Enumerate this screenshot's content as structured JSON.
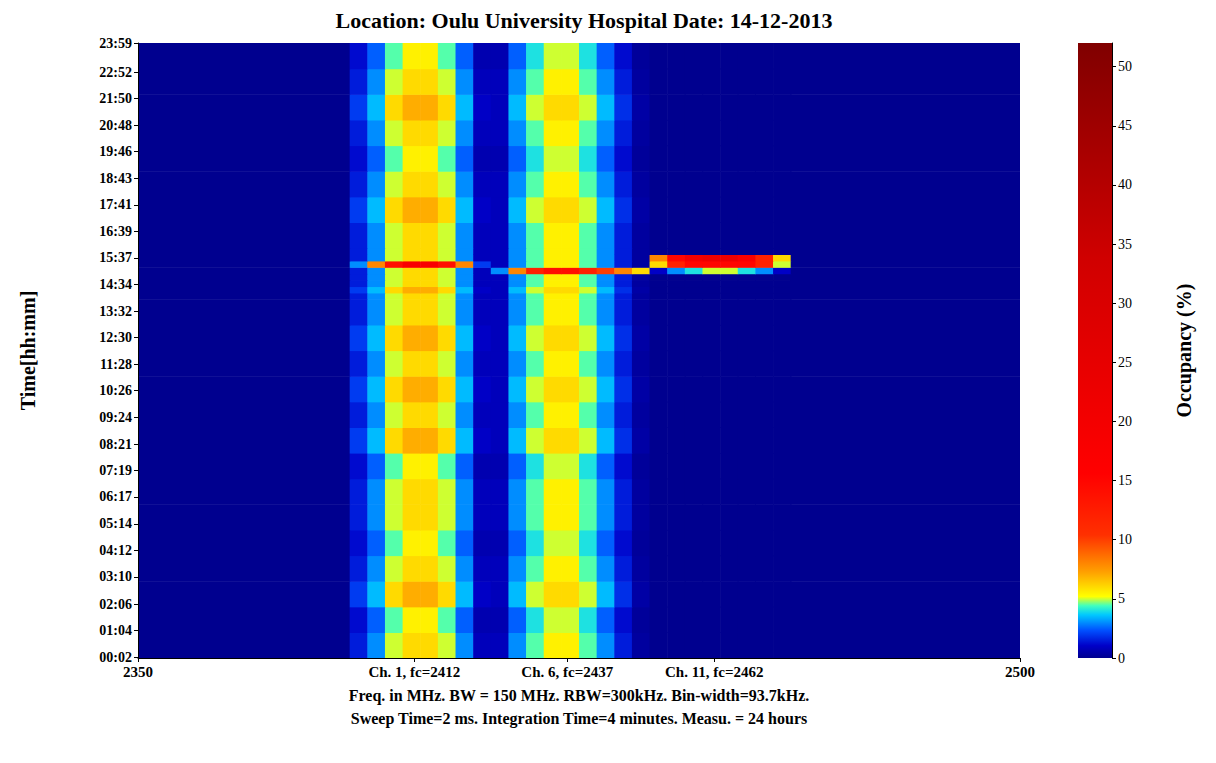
{
  "chart_data": {
    "type": "heatmap",
    "title": "Location: Oulu University Hospital Date: 14-12-2013",
    "xlabel": "Freq. in MHz. BW = 150 MHz. RBW=300kHz. Bin-width=93.7kHz.\nSweep Time=2 ms. Integration Time=4 minutes. Measu. = 24 hours",
    "ylabel": "Time[hh:mm]",
    "xlim": [
      2350,
      2500
    ],
    "xticks": [
      2350,
      {
        "value": 2397,
        "label": "Ch. 1, fc=2412"
      },
      {
        "value": 2423,
        "label": "Ch. 6, fc=2437"
      },
      {
        "value": 2448,
        "label": "Ch. 11, fc=2462"
      },
      2500
    ],
    "ylim": [
      0,
      1440
    ],
    "yticks": [
      {
        "value": 2,
        "label": "00:02"
      },
      {
        "value": 64,
        "label": "01:04"
      },
      {
        "value": 126,
        "label": "02:06"
      },
      {
        "value": 190,
        "label": "03:10"
      },
      {
        "value": 252,
        "label": "04:12"
      },
      {
        "value": 314,
        "label": "05:14"
      },
      {
        "value": 377,
        "label": "06:17"
      },
      {
        "value": 439,
        "label": "07:19"
      },
      {
        "value": 501,
        "label": "08:21"
      },
      {
        "value": 564,
        "label": "09:24"
      },
      {
        "value": 626,
        "label": "10:26"
      },
      {
        "value": 688,
        "label": "11:28"
      },
      {
        "value": 750,
        "label": "12:30"
      },
      {
        "value": 812,
        "label": "13:32"
      },
      {
        "value": 874,
        "label": "14:34"
      },
      {
        "value": 937,
        "label": "15:37"
      },
      {
        "value": 999,
        "label": "16:39"
      },
      {
        "value": 1061,
        "label": "17:41"
      },
      {
        "value": 1123,
        "label": "18:43"
      },
      {
        "value": 1186,
        "label": "19:46"
      },
      {
        "value": 1248,
        "label": "20:48"
      },
      {
        "value": 1310,
        "label": "21:50"
      },
      {
        "value": 1372,
        "label": "22:52"
      },
      {
        "value": 1439,
        "label": "23:59"
      }
    ],
    "grid": false,
    "x_bins": [
      2350,
      2386,
      2389,
      2392,
      2395,
      2398,
      2401,
      2404,
      2407,
      2410,
      2413,
      2416,
      2419,
      2422,
      2425,
      2428,
      2431,
      2434,
      2437,
      2440,
      2443,
      2446,
      2449,
      2452,
      2455,
      2458,
      2461,
      2500
    ],
    "y_bins": [
      0,
      60,
      120,
      180,
      240,
      300,
      360,
      420,
      480,
      540,
      600,
      660,
      720,
      780,
      840,
      855,
      870,
      885,
      900,
      915,
      930,
      945,
      960,
      1020,
      1080,
      1140,
      1200,
      1260,
      1320,
      1380,
      1440
    ],
    "z": [
      [
        0,
        1.5,
        3,
        5,
        6,
        6,
        5,
        3,
        0.8,
        0.8,
        3,
        4.5,
        5.5,
        5.5,
        4.5,
        3,
        1.5,
        0.3,
        0,
        0,
        0,
        0,
        0,
        0,
        0,
        0,
        0
      ],
      [
        0,
        1.2,
        2.5,
        4.5,
        5.5,
        5.5,
        4.5,
        2.5,
        0.6,
        0.6,
        2.5,
        4,
        5,
        5,
        4,
        2.5,
        1.2,
        0.2,
        0,
        0,
        0,
        0,
        0,
        0,
        0,
        0,
        0
      ],
      [
        0,
        2,
        3.5,
        6,
        7,
        7,
        6,
        3.5,
        1,
        0.8,
        3.5,
        5,
        6,
        6,
        5,
        3.5,
        1.8,
        0.4,
        0,
        0,
        0,
        0,
        0,
        0,
        0,
        0,
        0
      ],
      [
        0,
        1.5,
        3,
        5,
        6,
        6,
        5,
        3,
        0.8,
        0.8,
        3,
        4.5,
        5.5,
        5.5,
        4.5,
        3,
        1.5,
        0.3,
        0,
        0,
        0,
        0,
        0,
        0,
        0,
        0,
        0
      ],
      [
        0,
        1.2,
        2.5,
        4.5,
        5.5,
        5.5,
        4.5,
        2.5,
        0.6,
        0.6,
        2.5,
        4,
        5,
        5,
        4,
        2.5,
        1.2,
        0.2,
        0,
        0,
        0,
        0,
        0,
        0,
        0,
        0,
        0
      ],
      [
        0,
        1.5,
        3,
        5,
        6,
        6,
        5,
        3,
        0.8,
        0.8,
        3,
        4.5,
        5.5,
        5.5,
        4.5,
        3,
        1.5,
        0.3,
        0,
        0,
        0,
        0,
        0,
        0,
        0,
        0,
        0
      ],
      [
        0,
        1.5,
        3,
        5,
        6,
        6,
        5,
        3,
        0.8,
        0.8,
        3,
        4.5,
        5.5,
        5.5,
        4.5,
        3,
        1.5,
        0.3,
        0,
        0,
        0,
        0,
        0,
        0,
        0,
        0,
        0
      ],
      [
        0,
        1.2,
        2.5,
        4.5,
        5.5,
        5.5,
        4.5,
        2.5,
        0.6,
        0.6,
        2.5,
        4,
        5,
        5,
        4,
        2.5,
        1.2,
        0.2,
        0,
        0,
        0,
        0,
        0,
        0,
        0,
        0,
        0
      ],
      [
        0,
        2,
        3.5,
        6,
        7,
        7,
        6,
        3.5,
        1,
        0.8,
        3.5,
        5,
        6,
        6,
        5,
        3.5,
        1.8,
        0.4,
        0,
        0,
        0,
        0,
        0,
        0,
        0,
        0,
        0
      ],
      [
        0,
        1.5,
        3,
        5,
        6,
        6,
        5,
        3,
        0.8,
        0.8,
        3,
        4.5,
        5.5,
        5.5,
        4.5,
        3,
        1.5,
        0.3,
        0,
        0,
        0,
        0,
        0,
        0,
        0,
        0,
        0
      ],
      [
        0,
        2,
        3.5,
        6,
        7,
        7,
        6,
        3.5,
        1,
        0.8,
        3.5,
        5,
        6,
        6,
        5,
        3.5,
        1.8,
        0.4,
        0,
        0,
        0,
        0,
        0,
        0,
        0,
        0,
        0
      ],
      [
        0,
        1.5,
        3,
        5,
        6,
        6,
        5,
        3,
        0.8,
        0.8,
        3,
        4.5,
        5.5,
        5.5,
        4.5,
        3,
        1.5,
        0.3,
        0,
        0,
        0,
        0,
        0,
        0,
        0,
        0,
        0
      ],
      [
        0,
        2,
        3.5,
        6,
        7,
        7,
        6,
        3.5,
        1,
        0.8,
        3.5,
        5,
        6,
        6,
        5,
        3.5,
        1.8,
        0.4,
        0,
        0,
        0,
        0,
        0,
        0,
        0,
        0,
        0
      ],
      [
        0,
        1.5,
        3,
        5,
        6,
        6,
        5,
        3,
        0.8,
        0.8,
        3,
        4.5,
        5.5,
        5.5,
        4.5,
        3,
        1.5,
        0.3,
        0,
        0,
        0,
        0,
        0,
        0,
        0,
        0,
        0
      ],
      [
        0,
        1.5,
        3,
        5,
        6,
        6,
        5,
        3,
        0.8,
        0.8,
        3,
        4.5,
        5.5,
        5.5,
        4.5,
        3,
        1.5,
        0.3,
        0,
        0,
        0,
        0,
        0,
        0,
        0,
        0,
        0
      ],
      [
        0,
        2,
        3.5,
        6,
        7,
        7,
        6,
        3.5,
        1,
        0.8,
        3.5,
        5,
        6,
        6,
        5,
        3.5,
        1.8,
        0.4,
        0,
        0,
        0,
        0,
        0,
        0,
        0,
        0,
        0
      ],
      [
        0,
        1.5,
        3,
        5,
        6,
        6,
        5,
        3,
        0.8,
        0.8,
        3,
        4.5,
        5.5,
        5.5,
        4.5,
        3,
        1.5,
        0.3,
        0,
        0,
        0,
        0,
        0,
        0,
        0,
        0,
        0
      ],
      [
        0,
        1.5,
        3,
        5,
        6,
        6,
        5,
        3,
        0.8,
        0.8,
        3,
        4.5,
        5.5,
        5.5,
        4.5,
        3,
        1.5,
        0.3,
        0,
        0,
        0,
        0,
        0,
        0,
        0,
        0,
        0
      ],
      [
        0,
        1.5,
        3,
        5,
        6,
        6,
        5,
        3,
        0.8,
        3,
        8,
        12,
        14,
        14,
        12,
        10,
        8,
        6,
        1,
        3,
        4,
        5,
        5,
        4,
        3,
        1,
        0
      ],
      [
        0,
        3,
        8,
        14,
        18,
        18,
        14,
        8,
        2,
        0.8,
        3,
        4.5,
        5.5,
        5.5,
        4.5,
        3,
        1.5,
        0.3,
        6,
        12,
        15,
        15,
        15,
        15,
        12,
        5,
        0
      ],
      [
        0,
        1.5,
        3,
        5,
        6,
        6,
        5,
        3,
        0.8,
        0.8,
        3,
        4.5,
        5.5,
        5.5,
        4.5,
        3,
        1.5,
        0.3,
        8,
        15,
        20,
        22,
        22,
        18,
        12,
        6,
        0
      ],
      [
        0,
        1.5,
        3,
        5,
        6,
        6,
        5,
        3,
        0.8,
        0.8,
        3,
        4.5,
        5.5,
        5.5,
        4.5,
        3,
        1.5,
        0.3,
        0,
        0,
        0,
        0,
        0,
        0,
        0,
        0,
        0
      ],
      [
        0,
        1.5,
        3,
        5,
        6,
        6,
        5,
        3,
        0.8,
        0.8,
        3,
        4.5,
        5.5,
        5.5,
        4.5,
        3,
        1.5,
        0.3,
        0,
        0,
        0,
        0,
        0,
        0,
        0,
        0,
        0
      ],
      [
        0,
        2,
        3.5,
        6,
        7,
        7,
        6,
        3.5,
        1,
        0.8,
        3.5,
        5,
        6,
        6,
        5,
        3.5,
        1.8,
        0.4,
        0,
        0,
        0,
        0,
        0,
        0,
        0,
        0,
        0
      ],
      [
        0,
        1.5,
        3,
        5,
        6,
        6,
        5,
        3,
        0.8,
        0.8,
        3,
        4.5,
        5.5,
        5.5,
        4.5,
        3,
        1.5,
        0.3,
        0,
        0,
        0,
        0,
        0,
        0,
        0,
        0,
        0
      ],
      [
        0,
        1.2,
        2.5,
        4.5,
        5.5,
        5.5,
        4.5,
        2.5,
        0.6,
        0.6,
        2.5,
        4,
        5,
        5,
        4,
        2.5,
        1.2,
        0.2,
        0,
        0,
        0,
        0,
        0,
        0,
        0,
        0,
        0
      ],
      [
        0,
        1.5,
        3,
        5,
        6,
        6,
        5,
        3,
        0.8,
        0.8,
        3,
        4.5,
        5.5,
        5.5,
        4.5,
        3,
        1.5,
        0.3,
        0,
        0,
        0,
        0,
        0,
        0,
        0,
        0,
        0
      ],
      [
        0,
        2,
        3.5,
        6,
        7,
        7,
        6,
        3.5,
        1,
        0.8,
        3.5,
        5,
        6,
        6,
        5,
        3.5,
        1.8,
        0.4,
        0,
        0,
        0,
        0,
        0,
        0,
        0,
        0,
        0
      ],
      [
        0,
        1.5,
        3,
        5,
        6,
        6,
        5,
        3,
        0.8,
        0.8,
        3,
        4.5,
        5.5,
        5.5,
        4.5,
        3,
        1.5,
        0.3,
        0,
        0,
        0,
        0,
        0,
        0,
        0,
        0,
        0
      ],
      [
        0,
        1.2,
        2.5,
        4.5,
        5.5,
        5.5,
        4.5,
        2.5,
        0.6,
        0.6,
        2.5,
        4,
        5,
        5,
        4,
        2.5,
        1.2,
        0.2,
        0,
        0,
        0,
        0,
        0,
        0,
        0,
        0,
        0
      ]
    ],
    "colorbar": {
      "label": "Occupancy (%)",
      "lim": [
        0,
        52
      ],
      "ticks": [
        0,
        5,
        10,
        15,
        20,
        25,
        30,
        35,
        40,
        45,
        50
      ]
    }
  }
}
